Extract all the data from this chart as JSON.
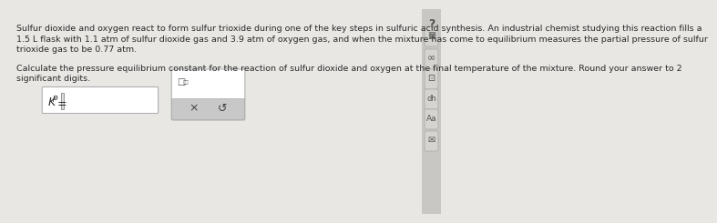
{
  "bg_color": "#d0cfcd",
  "content_bg": "#e8e7e4",
  "main_text_line1": "Sulfur dioxide and oxygen react to form sulfur trioxide during one of the key steps in sulfuric acid synthesis. An industrial chemist studying this reaction fills a",
  "main_text_line2": "1.5 L flask with 1.1 atm of sulfur dioxide gas and 3.9 atm of oxygen gas, and when the mixture has come to equilibrium measures the partial pressure of sulfur",
  "main_text_line3": "trioxide gas to be 0.77 atm.",
  "sub_text_line1": "Calculate the pressure equilibrium constant for the reaction of sulfur dioxide and oxygen at the final temperature of the mixture. Round your answer to 2",
  "sub_text_line2": "significant digits.",
  "text_color": "#2a2a2a",
  "text_fontsize": 6.8,
  "input_box_color": "#ffffff",
  "input_box_border": "#b0b0b0",
  "button_bg": "#c8c8c8",
  "sidebar_icon_bg": "#d8d7d4",
  "sidebar_icon_border": "#b8b7b4"
}
